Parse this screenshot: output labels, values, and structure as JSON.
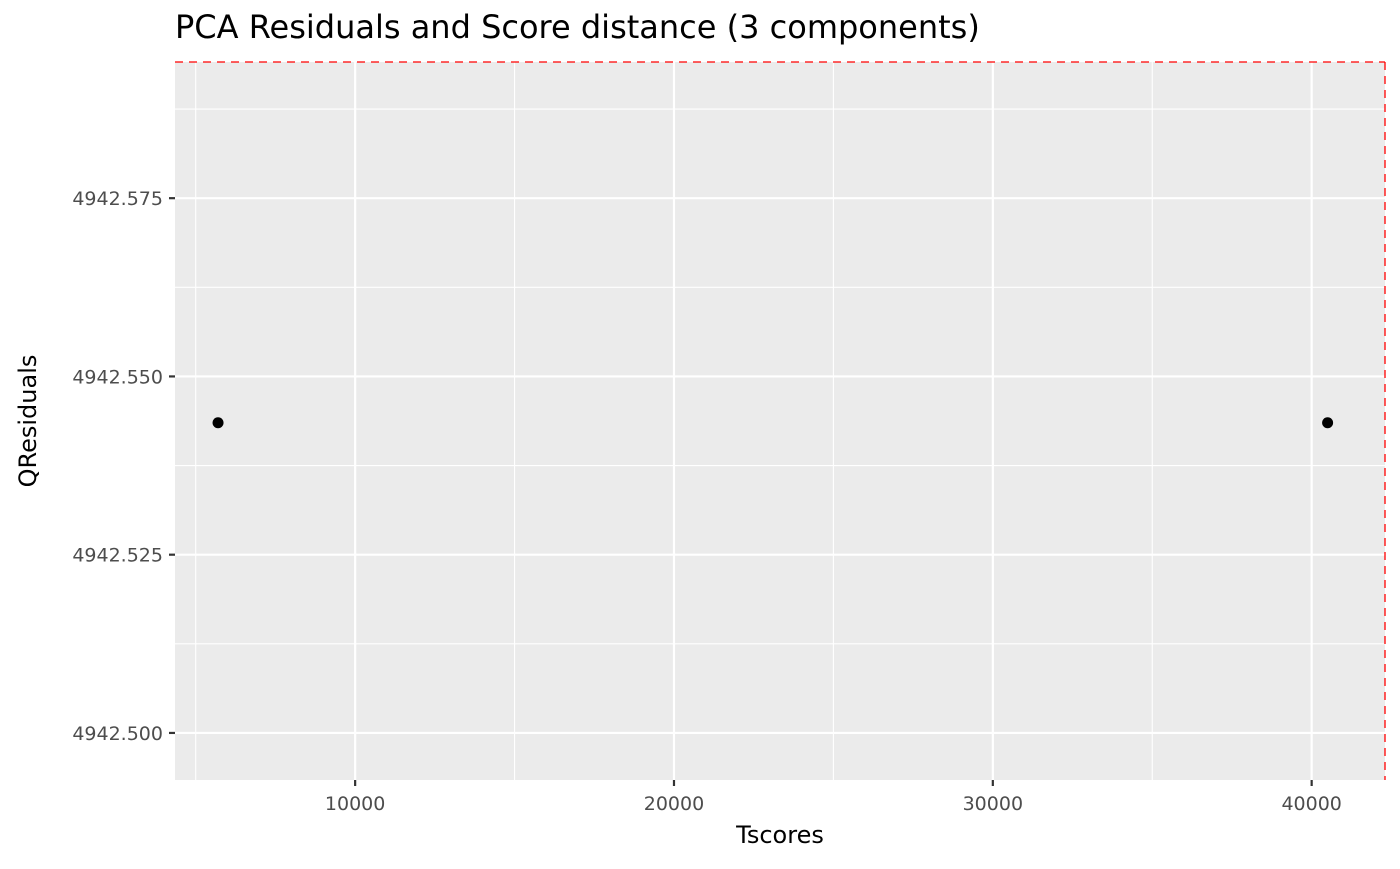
{
  "chart_data": {
    "type": "scatter",
    "title": "PCA Residuals and Score distance (3 components)",
    "xlabel": "Tscores",
    "ylabel": "QResiduals",
    "xlim": [
      4350,
      42300
    ],
    "ylim": [
      4942.4934,
      4942.5941
    ],
    "x_ticks": [
      10000,
      20000,
      30000,
      40000
    ],
    "x_tick_labels": [
      "10000",
      "20000",
      "30000",
      "40000"
    ],
    "x_minor_ticks": [
      5000,
      15000,
      25000,
      35000
    ],
    "y_ticks": [
      4942.5,
      4942.525,
      4942.55,
      4942.575
    ],
    "y_tick_labels": [
      "4942.500",
      "4942.525",
      "4942.550",
      "4942.575"
    ],
    "y_minor_ticks": [
      4942.5125,
      4942.5375,
      4942.5625,
      4942.5875
    ],
    "points": [
      {
        "x": 5700,
        "y": 4942.5435
      },
      {
        "x": 40500,
        "y": 4942.5435
      }
    ],
    "threshold_lines": {
      "x": 42300,
      "y": 4942.5941,
      "color": "#ff0000",
      "style": "dashed"
    },
    "panel_background": "#ebebeb",
    "grid_color": "#ffffff",
    "point_color": "#000000",
    "grid": true,
    "legend": "none"
  }
}
